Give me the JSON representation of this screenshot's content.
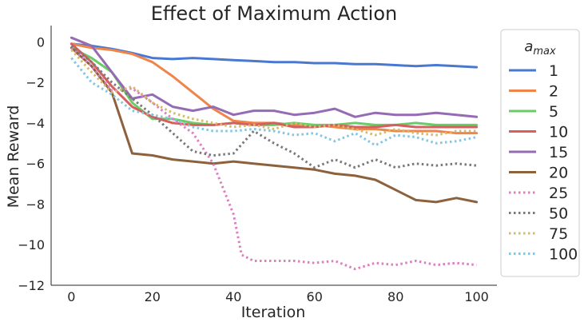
{
  "chart_data": {
    "type": "line",
    "title": "Effect of Maximum Action",
    "xlabel": "Iteration",
    "ylabel": "Mean Reward",
    "xlim": [
      -5,
      105
    ],
    "ylim": [
      -12,
      0.8
    ],
    "xticks": [
      0,
      20,
      40,
      60,
      80,
      100
    ],
    "yticks": [
      0,
      -2,
      -4,
      -6,
      -8,
      -10,
      -12
    ],
    "grid": false,
    "legend": {
      "placement": "right-outside",
      "title_base": "a",
      "title_sub": "max"
    },
    "series": [
      {
        "name": "1",
        "color": "#4878d0",
        "dash": "solid",
        "x": [
          0,
          5,
          10,
          15,
          20,
          25,
          30,
          35,
          40,
          45,
          50,
          55,
          60,
          65,
          70,
          75,
          80,
          85,
          90,
          95,
          100
        ],
        "y": [
          -0.1,
          -0.2,
          -0.35,
          -0.55,
          -0.8,
          -0.85,
          -0.8,
          -0.85,
          -0.9,
          -0.95,
          -1.0,
          -1.0,
          -1.05,
          -1.05,
          -1.1,
          -1.1,
          -1.15,
          -1.2,
          -1.15,
          -1.2,
          -1.25
        ]
      },
      {
        "name": "2",
        "color": "#ee854a",
        "dash": "solid",
        "x": [
          0,
          5,
          10,
          15,
          20,
          25,
          30,
          35,
          40,
          45,
          50,
          55,
          60,
          65,
          70,
          75,
          80,
          85,
          90,
          95,
          100
        ],
        "y": [
          -0.1,
          -0.3,
          -0.4,
          -0.6,
          -1.0,
          -1.7,
          -2.5,
          -3.3,
          -3.9,
          -4.0,
          -4.0,
          -4.1,
          -4.1,
          -4.2,
          -4.3,
          -4.3,
          -4.4,
          -4.4,
          -4.4,
          -4.5,
          -4.5
        ]
      },
      {
        "name": "5",
        "color": "#6acc64",
        "dash": "solid",
        "x": [
          0,
          5,
          10,
          15,
          20,
          25,
          30,
          35,
          40,
          45,
          50,
          55,
          60,
          65,
          70,
          75,
          80,
          85,
          90,
          95,
          100
        ],
        "y": [
          -0.3,
          -0.8,
          -1.5,
          -3.0,
          -3.8,
          -3.8,
          -4.0,
          -4.1,
          -4.0,
          -4.1,
          -4.1,
          -4.0,
          -4.1,
          -4.1,
          -4.0,
          -4.1,
          -4.1,
          -4.0,
          -4.1,
          -4.1,
          -4.1
        ]
      },
      {
        "name": "10",
        "color": "#d65f5f",
        "dash": "solid",
        "x": [
          0,
          5,
          10,
          15,
          20,
          25,
          30,
          35,
          40,
          45,
          50,
          55,
          60,
          65,
          70,
          75,
          80,
          85,
          90,
          95,
          100
        ],
        "y": [
          -0.1,
          -1.0,
          -2.2,
          -3.2,
          -3.7,
          -4.0,
          -4.1,
          -4.1,
          -4.0,
          -4.1,
          -4.0,
          -4.2,
          -4.2,
          -4.1,
          -4.2,
          -4.2,
          -4.1,
          -4.2,
          -4.2,
          -4.2,
          -4.2
        ]
      },
      {
        "name": "15",
        "color": "#956cb4",
        "dash": "solid",
        "x": [
          0,
          5,
          10,
          15,
          20,
          25,
          30,
          35,
          40,
          45,
          50,
          55,
          60,
          65,
          70,
          75,
          80,
          85,
          90,
          95,
          100
        ],
        "y": [
          0.2,
          -0.2,
          -1.5,
          -2.8,
          -2.6,
          -3.2,
          -3.4,
          -3.2,
          -3.6,
          -3.4,
          -3.4,
          -3.6,
          -3.5,
          -3.3,
          -3.7,
          -3.5,
          -3.6,
          -3.6,
          -3.5,
          -3.6,
          -3.7
        ]
      },
      {
        "name": "20",
        "color": "#8c613c",
        "dash": "solid",
        "x": [
          0,
          5,
          10,
          15,
          20,
          25,
          30,
          35,
          40,
          45,
          50,
          55,
          60,
          65,
          70,
          75,
          80,
          85,
          90,
          95,
          100
        ],
        "y": [
          -0.3,
          -1.2,
          -2.5,
          -5.5,
          -5.6,
          -5.8,
          -5.9,
          -6.0,
          -5.9,
          -6.0,
          -6.1,
          -6.2,
          -6.3,
          -6.5,
          -6.6,
          -6.8,
          -7.3,
          -7.8,
          -7.9,
          -7.7,
          -7.9
        ]
      },
      {
        "name": "25",
        "color": "#dc7ec0",
        "dash": "dotted",
        "x": [
          0,
          5,
          10,
          15,
          20,
          25,
          30,
          35,
          40,
          42,
          45,
          50,
          55,
          60,
          65,
          70,
          75,
          80,
          85,
          90,
          95,
          100
        ],
        "y": [
          -0.3,
          -1.2,
          -2.4,
          -2.3,
          -3.0,
          -3.8,
          -4.5,
          -6.0,
          -8.5,
          -10.5,
          -10.8,
          -10.8,
          -10.8,
          -10.9,
          -10.8,
          -11.2,
          -10.9,
          -11.0,
          -10.8,
          -11.0,
          -10.9,
          -11.0
        ]
      },
      {
        "name": "50",
        "color": "#797979",
        "dash": "dotted",
        "x": [
          0,
          5,
          10,
          15,
          20,
          25,
          30,
          35,
          40,
          45,
          50,
          55,
          60,
          65,
          70,
          75,
          80,
          85,
          90,
          95,
          100
        ],
        "y": [
          -0.2,
          -1.0,
          -2.0,
          -2.8,
          -3.6,
          -4.5,
          -5.4,
          -5.6,
          -5.5,
          -4.4,
          -5.0,
          -5.5,
          -6.2,
          -5.8,
          -6.2,
          -5.8,
          -6.2,
          -6.0,
          -6.1,
          -6.0,
          -6.1
        ]
      },
      {
        "name": "75",
        "color": "#d5bb67",
        "dash": "dotted",
        "x": [
          0,
          5,
          10,
          15,
          20,
          25,
          30,
          35,
          40,
          45,
          50,
          55,
          60,
          65,
          70,
          75,
          80,
          85,
          90,
          95,
          100
        ],
        "y": [
          -0.4,
          -1.5,
          -2.5,
          -2.2,
          -3.0,
          -3.5,
          -3.8,
          -4.0,
          -4.2,
          -4.1,
          -4.3,
          -4.0,
          -4.2,
          -4.1,
          -4.3,
          -4.6,
          -4.3,
          -4.5,
          -4.6,
          -4.4,
          -4.4
        ]
      },
      {
        "name": "100",
        "color": "#82c6e2",
        "dash": "dotted",
        "x": [
          0,
          5,
          10,
          15,
          20,
          25,
          30,
          35,
          40,
          45,
          50,
          55,
          60,
          65,
          70,
          75,
          80,
          85,
          90,
          95,
          100
        ],
        "y": [
          -0.8,
          -2.0,
          -2.6,
          -3.4,
          -3.6,
          -3.8,
          -4.2,
          -4.4,
          -4.4,
          -4.3,
          -4.4,
          -4.6,
          -4.5,
          -4.9,
          -4.5,
          -5.1,
          -4.6,
          -4.7,
          -5.0,
          -4.9,
          -4.7
        ]
      }
    ]
  }
}
